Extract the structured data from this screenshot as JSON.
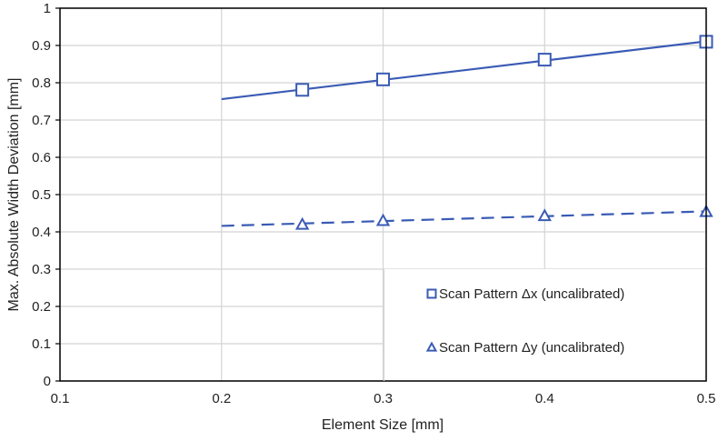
{
  "chart_data": {
    "type": "scatter",
    "title": "",
    "xlabel": "Element Size [mm]",
    "ylabel": "Max. Absolute Width Deviation [mm]",
    "xlim": [
      0.1,
      0.5
    ],
    "ylim": [
      0,
      1
    ],
    "xticks": [
      "0.1",
      "0.2",
      "0.3",
      "0.4",
      "0.5"
    ],
    "yticks": [
      "0",
      "0.1",
      "0.2",
      "0.3",
      "0.4",
      "0.5",
      "0.6",
      "0.7",
      "0.8",
      "0.9",
      "1"
    ],
    "grid": true,
    "legend_position": "bottom-right",
    "colors": {
      "series": "#3a5bb5",
      "grid": "#d4d4d4",
      "axis": "#000000"
    },
    "series": [
      {
        "name": "Scan Pattern Δx (uncalibrated)",
        "marker": "square",
        "line": "solid",
        "x": [
          0.25,
          0.3,
          0.4,
          0.5
        ],
        "y": [
          0.781,
          0.809,
          0.862,
          0.91
        ],
        "fit": {
          "x": [
            0.2,
            0.5
          ],
          "y": [
            0.756,
            0.911
          ]
        }
      },
      {
        "name": "Scan Pattern Δy (uncalibrated)",
        "marker": "triangle",
        "line": "dashed",
        "x": [
          0.25,
          0.3,
          0.4,
          0.5
        ],
        "y": [
          0.42,
          0.43,
          0.443,
          0.454
        ],
        "fit": {
          "x": [
            0.2,
            0.5
          ],
          "y": [
            0.416,
            0.455
          ]
        }
      }
    ]
  }
}
